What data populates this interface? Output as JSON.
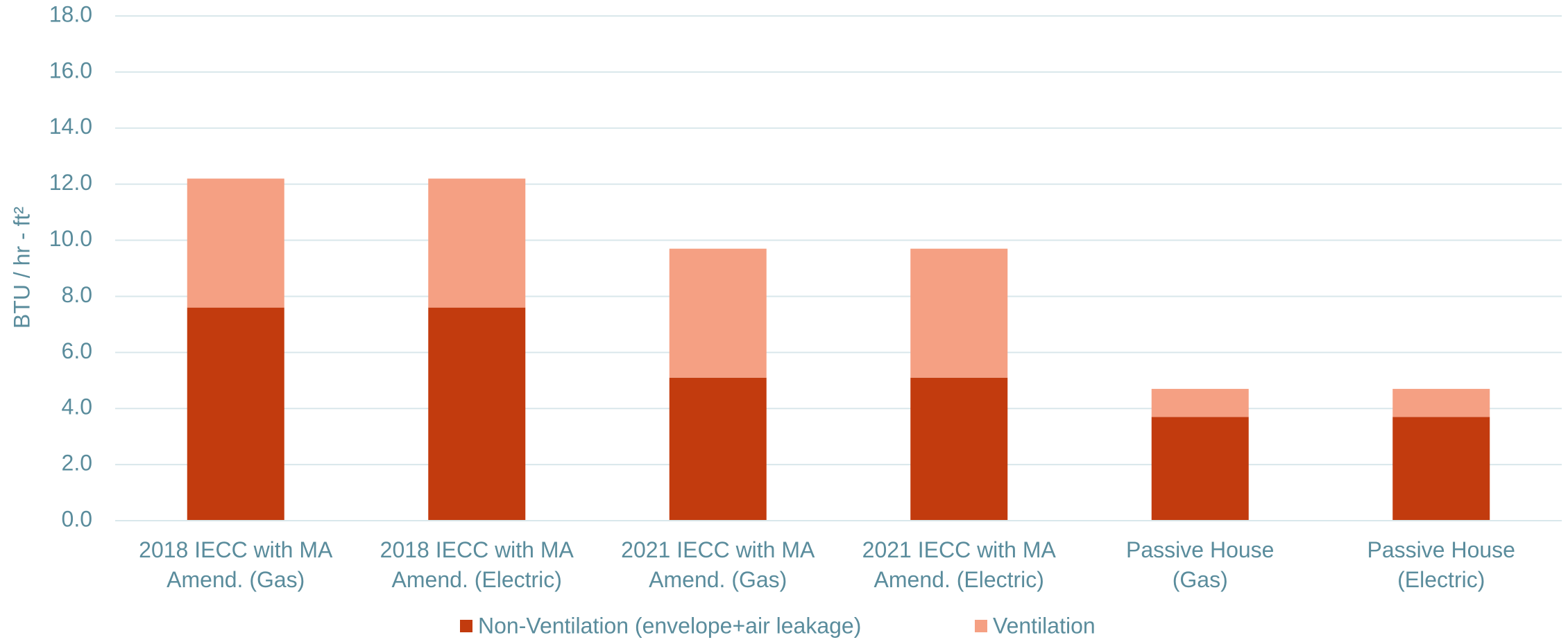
{
  "chart_data": {
    "type": "stacked_bar",
    "y_label": "BTU / hr - ft²",
    "categories": [
      "2018 IECC with MA\nAmend. (Gas)",
      "2018 IECC with MA\nAmend. (Electric)",
      "2021 IECC with MA\nAmend. (Gas)",
      "2021 IECC with MA\nAmend. (Electric)",
      "Passive House\n(Gas)",
      "Passive House\n(Electric)"
    ],
    "series": [
      {
        "name": "Non-Ventilation (envelope+air leakage)",
        "color": "#c23b0e",
        "values": [
          7.6,
          7.6,
          5.1,
          5.1,
          3.7,
          3.7
        ]
      },
      {
        "name": "Ventilation",
        "color": "#f5a083",
        "values": [
          4.6,
          4.6,
          4.6,
          4.6,
          1.0,
          1.0
        ]
      }
    ],
    "ylim": [
      0,
      18
    ],
    "yticks": [
      {
        "value": 0,
        "label": "0.0"
      },
      {
        "value": 2,
        "label": "2.0"
      },
      {
        "value": 4,
        "label": "4.0"
      },
      {
        "value": 6,
        "label": "6.0"
      },
      {
        "value": 8,
        "label": "8.0"
      },
      {
        "value": 10,
        "label": "10.0"
      },
      {
        "value": 12,
        "label": "12.0"
      },
      {
        "value": 14,
        "label": "14.0"
      },
      {
        "value": 16,
        "label": "16.0"
      },
      {
        "value": 18,
        "label": "18.0"
      }
    ],
    "grid": true,
    "legend": "bottom"
  }
}
